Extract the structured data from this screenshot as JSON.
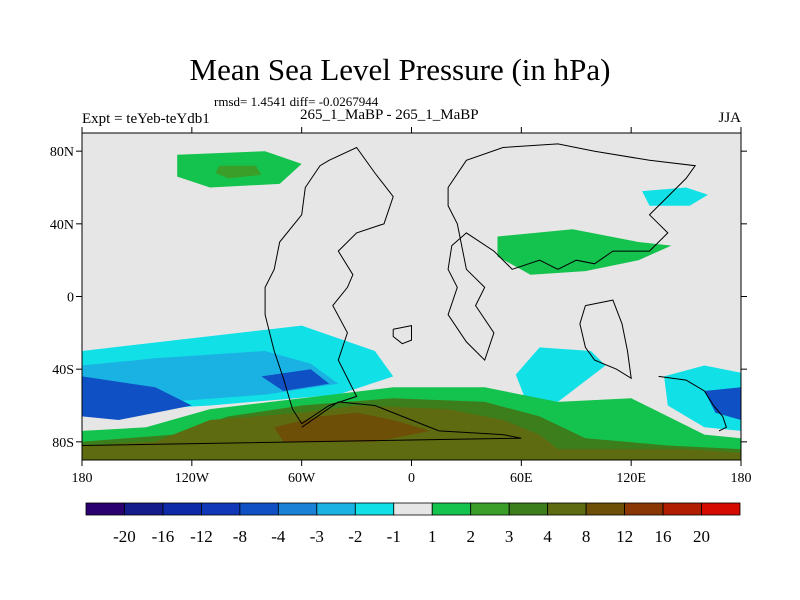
{
  "chart_data": {
    "type": "heatmap",
    "title": "Mean Sea Level Pressure (in hPa)",
    "stats_text": "rmsd= 1.4541 diff= -0.0267944",
    "left_label": "Expt = teYeb-teYdb1",
    "center_label": "265_1_MaBP - 265_1_MaBP",
    "right_label": "JJA",
    "x_ticks": [
      {
        "value": -180,
        "label": "180"
      },
      {
        "value": -120,
        "label": "120W"
      },
      {
        "value": -60,
        "label": "60W"
      },
      {
        "value": 0,
        "label": "0"
      },
      {
        "value": 60,
        "label": "60E"
      },
      {
        "value": 120,
        "label": "120E"
      },
      {
        "value": 180,
        "label": "180"
      }
    ],
    "y_ticks": [
      {
        "value": 80,
        "label": "80N"
      },
      {
        "value": 40,
        "label": "40N"
      },
      {
        "value": 0,
        "label": "0"
      },
      {
        "value": -40,
        "label": "40S"
      },
      {
        "value": -80,
        "label": "80S"
      }
    ],
    "xlim": [
      -180,
      180
    ],
    "ylim": [
      -90,
      90
    ],
    "colorbar": {
      "colors": [
        "#2a0070",
        "#141c8c",
        "#0f2aa8",
        "#1037b8",
        "#0f50c4",
        "#1a82d6",
        "#1ab2e2",
        "#11e0e6",
        "#e6e6e6",
        "#14c24e",
        "#3a9e28",
        "#3d7e1c",
        "#5e6b10",
        "#6d4f08",
        "#8a3604",
        "#b01d00",
        "#d50a00"
      ],
      "labels": [
        "-20",
        "-16",
        "-12",
        "-8",
        "-4",
        "-3",
        "-2",
        "-1",
        "1",
        "2",
        "3",
        "4",
        "8",
        "12",
        "16",
        "20"
      ]
    },
    "regions": [
      {
        "name": "arctic-high-pacific",
        "level": "2",
        "color": "#14c24e",
        "points": [
          [
            -128,
            78
          ],
          [
            -80,
            80
          ],
          [
            -60,
            73
          ],
          [
            -72,
            62
          ],
          [
            -110,
            60
          ],
          [
            -128,
            66
          ]
        ]
      },
      {
        "name": "arctic-high-pacific-core",
        "level": "3",
        "color": "#3a9e28",
        "points": [
          [
            -105,
            72
          ],
          [
            -85,
            72
          ],
          [
            -82,
            67
          ],
          [
            -100,
            65
          ],
          [
            -107,
            68
          ]
        ]
      },
      {
        "name": "siberian-low",
        "level": "-1",
        "color": "#11e0e6",
        "points": [
          [
            126,
            58
          ],
          [
            150,
            60
          ],
          [
            162,
            56
          ],
          [
            152,
            50
          ],
          [
            130,
            50
          ]
        ]
      },
      {
        "name": "central-asia-high",
        "level": "2",
        "color": "#14c24e",
        "points": [
          [
            47,
            33
          ],
          [
            88,
            37
          ],
          [
            124,
            30
          ],
          [
            142,
            28
          ],
          [
            124,
            20
          ],
          [
            95,
            14
          ],
          [
            65,
            12
          ],
          [
            47,
            22
          ]
        ]
      },
      {
        "name": "indian-ocean-low",
        "level": "-1",
        "color": "#11e0e6",
        "points": [
          [
            70,
            -28
          ],
          [
            98,
            -30
          ],
          [
            106,
            -38
          ],
          [
            80,
            -58
          ],
          [
            62,
            -56
          ],
          [
            57,
            -43
          ]
        ]
      },
      {
        "name": "south-pacific-low",
        "level": "-1",
        "color": "#11e0e6",
        "points": [
          [
            -180,
            -30
          ],
          [
            -60,
            -16
          ],
          [
            -20,
            -30
          ],
          [
            -10,
            -44
          ],
          [
            -40,
            -54
          ],
          [
            -110,
            -60
          ],
          [
            -180,
            -64
          ]
        ]
      },
      {
        "name": "south-pacific-low-inner",
        "level": "-2",
        "color": "#1ab2e2",
        "points": [
          [
            -180,
            -38
          ],
          [
            -140,
            -34
          ],
          [
            -80,
            -30
          ],
          [
            -55,
            -37
          ],
          [
            -40,
            -48
          ],
          [
            -80,
            -54
          ],
          [
            -160,
            -60
          ],
          [
            -180,
            -62
          ]
        ]
      },
      {
        "name": "south-pacific-low-core",
        "level": "-4",
        "color": "#0f50c4",
        "points": [
          [
            -180,
            -44
          ],
          [
            -140,
            -50
          ],
          [
            -120,
            -60
          ],
          [
            -160,
            -68
          ],
          [
            -180,
            -66
          ]
        ]
      },
      {
        "name": "southeast-pacific-low",
        "level": "-4",
        "color": "#0f50c4",
        "points": [
          [
            -82,
            -44
          ],
          [
            -55,
            -40
          ],
          [
            -45,
            -48
          ],
          [
            -70,
            -52
          ]
        ]
      },
      {
        "name": "tasman-low",
        "level": "-1",
        "color": "#11e0e6",
        "points": [
          [
            138,
            -44
          ],
          [
            160,
            -38
          ],
          [
            180,
            -42
          ],
          [
            180,
            -74
          ],
          [
            160,
            -72
          ],
          [
            140,
            -60
          ]
        ]
      },
      {
        "name": "tasman-low-core",
        "level": "-4",
        "color": "#0f50c4",
        "points": [
          [
            160,
            -52
          ],
          [
            180,
            -50
          ],
          [
            180,
            -68
          ],
          [
            166,
            -64
          ]
        ]
      },
      {
        "name": "southern-high-belt",
        "level": "2",
        "color": "#14c24e",
        "points": [
          [
            -180,
            -74
          ],
          [
            -145,
            -72
          ],
          [
            -110,
            -62
          ],
          [
            -60,
            -56
          ],
          [
            -10,
            -50
          ],
          [
            40,
            -50
          ],
          [
            80,
            -58
          ],
          [
            120,
            -56
          ],
          [
            140,
            -66
          ],
          [
            160,
            -76
          ],
          [
            180,
            -78
          ],
          [
            180,
            -90
          ],
          [
            -180,
            -90
          ]
        ]
      },
      {
        "name": "southern-high-belt-4",
        "level": "4",
        "color": "#3d7e1c",
        "points": [
          [
            -180,
            -80
          ],
          [
            -130,
            -76
          ],
          [
            -100,
            -66
          ],
          [
            -60,
            -60
          ],
          [
            -10,
            -56
          ],
          [
            40,
            -58
          ],
          [
            70,
            -66
          ],
          [
            95,
            -78
          ],
          [
            140,
            -82
          ],
          [
            180,
            -84
          ],
          [
            180,
            -90
          ],
          [
            -180,
            -90
          ]
        ]
      },
      {
        "name": "antarctic-high",
        "level": "8",
        "color": "#5e6b10",
        "points": [
          [
            -180,
            -82
          ],
          [
            -140,
            -80
          ],
          [
            -110,
            -68
          ],
          [
            -60,
            -64
          ],
          [
            -30,
            -60
          ],
          [
            20,
            -62
          ],
          [
            50,
            -68
          ],
          [
            70,
            -76
          ],
          [
            80,
            -84
          ],
          [
            150,
            -84
          ],
          [
            180,
            -86
          ],
          [
            180,
            -90
          ],
          [
            -180,
            -90
          ]
        ]
      },
      {
        "name": "antarctic-high-core",
        "level": "12",
        "color": "#6d4f08",
        "points": [
          [
            -75,
            -72
          ],
          [
            -50,
            -66
          ],
          [
            -30,
            -64
          ],
          [
            -10,
            -68
          ],
          [
            10,
            -74
          ],
          [
            -20,
            -80
          ],
          [
            -70,
            -80
          ]
        ]
      }
    ],
    "coastlines": [
      {
        "name": "coastline-americas",
        "points": [
          [
            -45,
            75
          ],
          [
            -30,
            82
          ],
          [
            -20,
            68
          ],
          [
            -10,
            55
          ],
          [
            -15,
            40
          ],
          [
            -30,
            35
          ],
          [
            -40,
            25
          ],
          [
            -32,
            12
          ],
          [
            -35,
            5
          ],
          [
            -43,
            -5
          ],
          [
            -35,
            -20
          ],
          [
            -40,
            -35
          ],
          [
            -30,
            -55
          ],
          [
            -45,
            -60
          ],
          [
            -60,
            -70
          ],
          [
            -65,
            -62
          ],
          [
            -70,
            -45
          ],
          [
            -75,
            -30
          ],
          [
            -80,
            -10
          ],
          [
            -80,
            5
          ],
          [
            -75,
            15
          ],
          [
            -72,
            30
          ],
          [
            -60,
            45
          ],
          [
            -58,
            60
          ],
          [
            -50,
            72
          ],
          [
            -45,
            75
          ]
        ]
      },
      {
        "name": "coastline-eurasia",
        "points": [
          [
            20,
            60
          ],
          [
            30,
            75
          ],
          [
            50,
            82
          ],
          [
            80,
            84
          ],
          [
            100,
            80
          ],
          [
            130,
            75
          ],
          [
            155,
            72
          ],
          [
            150,
            65
          ],
          [
            140,
            55
          ],
          [
            130,
            45
          ],
          [
            140,
            35
          ],
          [
            130,
            25
          ],
          [
            110,
            25
          ],
          [
            100,
            18
          ],
          [
            90,
            20
          ],
          [
            80,
            15
          ],
          [
            70,
            20
          ],
          [
            55,
            15
          ],
          [
            45,
            25
          ],
          [
            30,
            35
          ],
          [
            22,
            28
          ],
          [
            20,
            15
          ],
          [
            25,
            5
          ],
          [
            20,
            -10
          ],
          [
            30,
            -25
          ],
          [
            40,
            -35
          ],
          [
            45,
            -20
          ],
          [
            35,
            -5
          ],
          [
            40,
            5
          ],
          [
            30,
            15
          ],
          [
            25,
            40
          ],
          [
            20,
            50
          ],
          [
            20,
            60
          ]
        ]
      },
      {
        "name": "coastline-australia",
        "points": [
          [
            95,
            -5
          ],
          [
            110,
            -2
          ],
          [
            115,
            -15
          ],
          [
            118,
            -30
          ],
          [
            120,
            -45
          ],
          [
            112,
            -40
          ],
          [
            100,
            -35
          ],
          [
            95,
            -28
          ],
          [
            92,
            -15
          ],
          [
            95,
            -5
          ]
        ]
      },
      {
        "name": "coastline-antarctica",
        "points": [
          [
            -60,
            -72
          ],
          [
            -40,
            -58
          ],
          [
            -20,
            -60
          ],
          [
            -5,
            -66
          ],
          [
            15,
            -74
          ],
          [
            50,
            -76
          ],
          [
            60,
            -78
          ],
          [
            -180,
            -82
          ]
        ]
      },
      {
        "name": "coastline-island-atlantic",
        "points": [
          [
            -10,
            -18
          ],
          [
            0,
            -16
          ],
          [
            0,
            -24
          ],
          [
            -5,
            -26
          ],
          [
            -10,
            -22
          ],
          [
            -10,
            -18
          ]
        ]
      },
      {
        "name": "coastline-pacific-islands",
        "points": [
          [
            135,
            -44
          ],
          [
            150,
            -46
          ],
          [
            160,
            -52
          ],
          [
            165,
            -60
          ],
          [
            170,
            -66
          ],
          [
            172,
            -72
          ],
          [
            168,
            -74
          ]
        ]
      }
    ]
  }
}
